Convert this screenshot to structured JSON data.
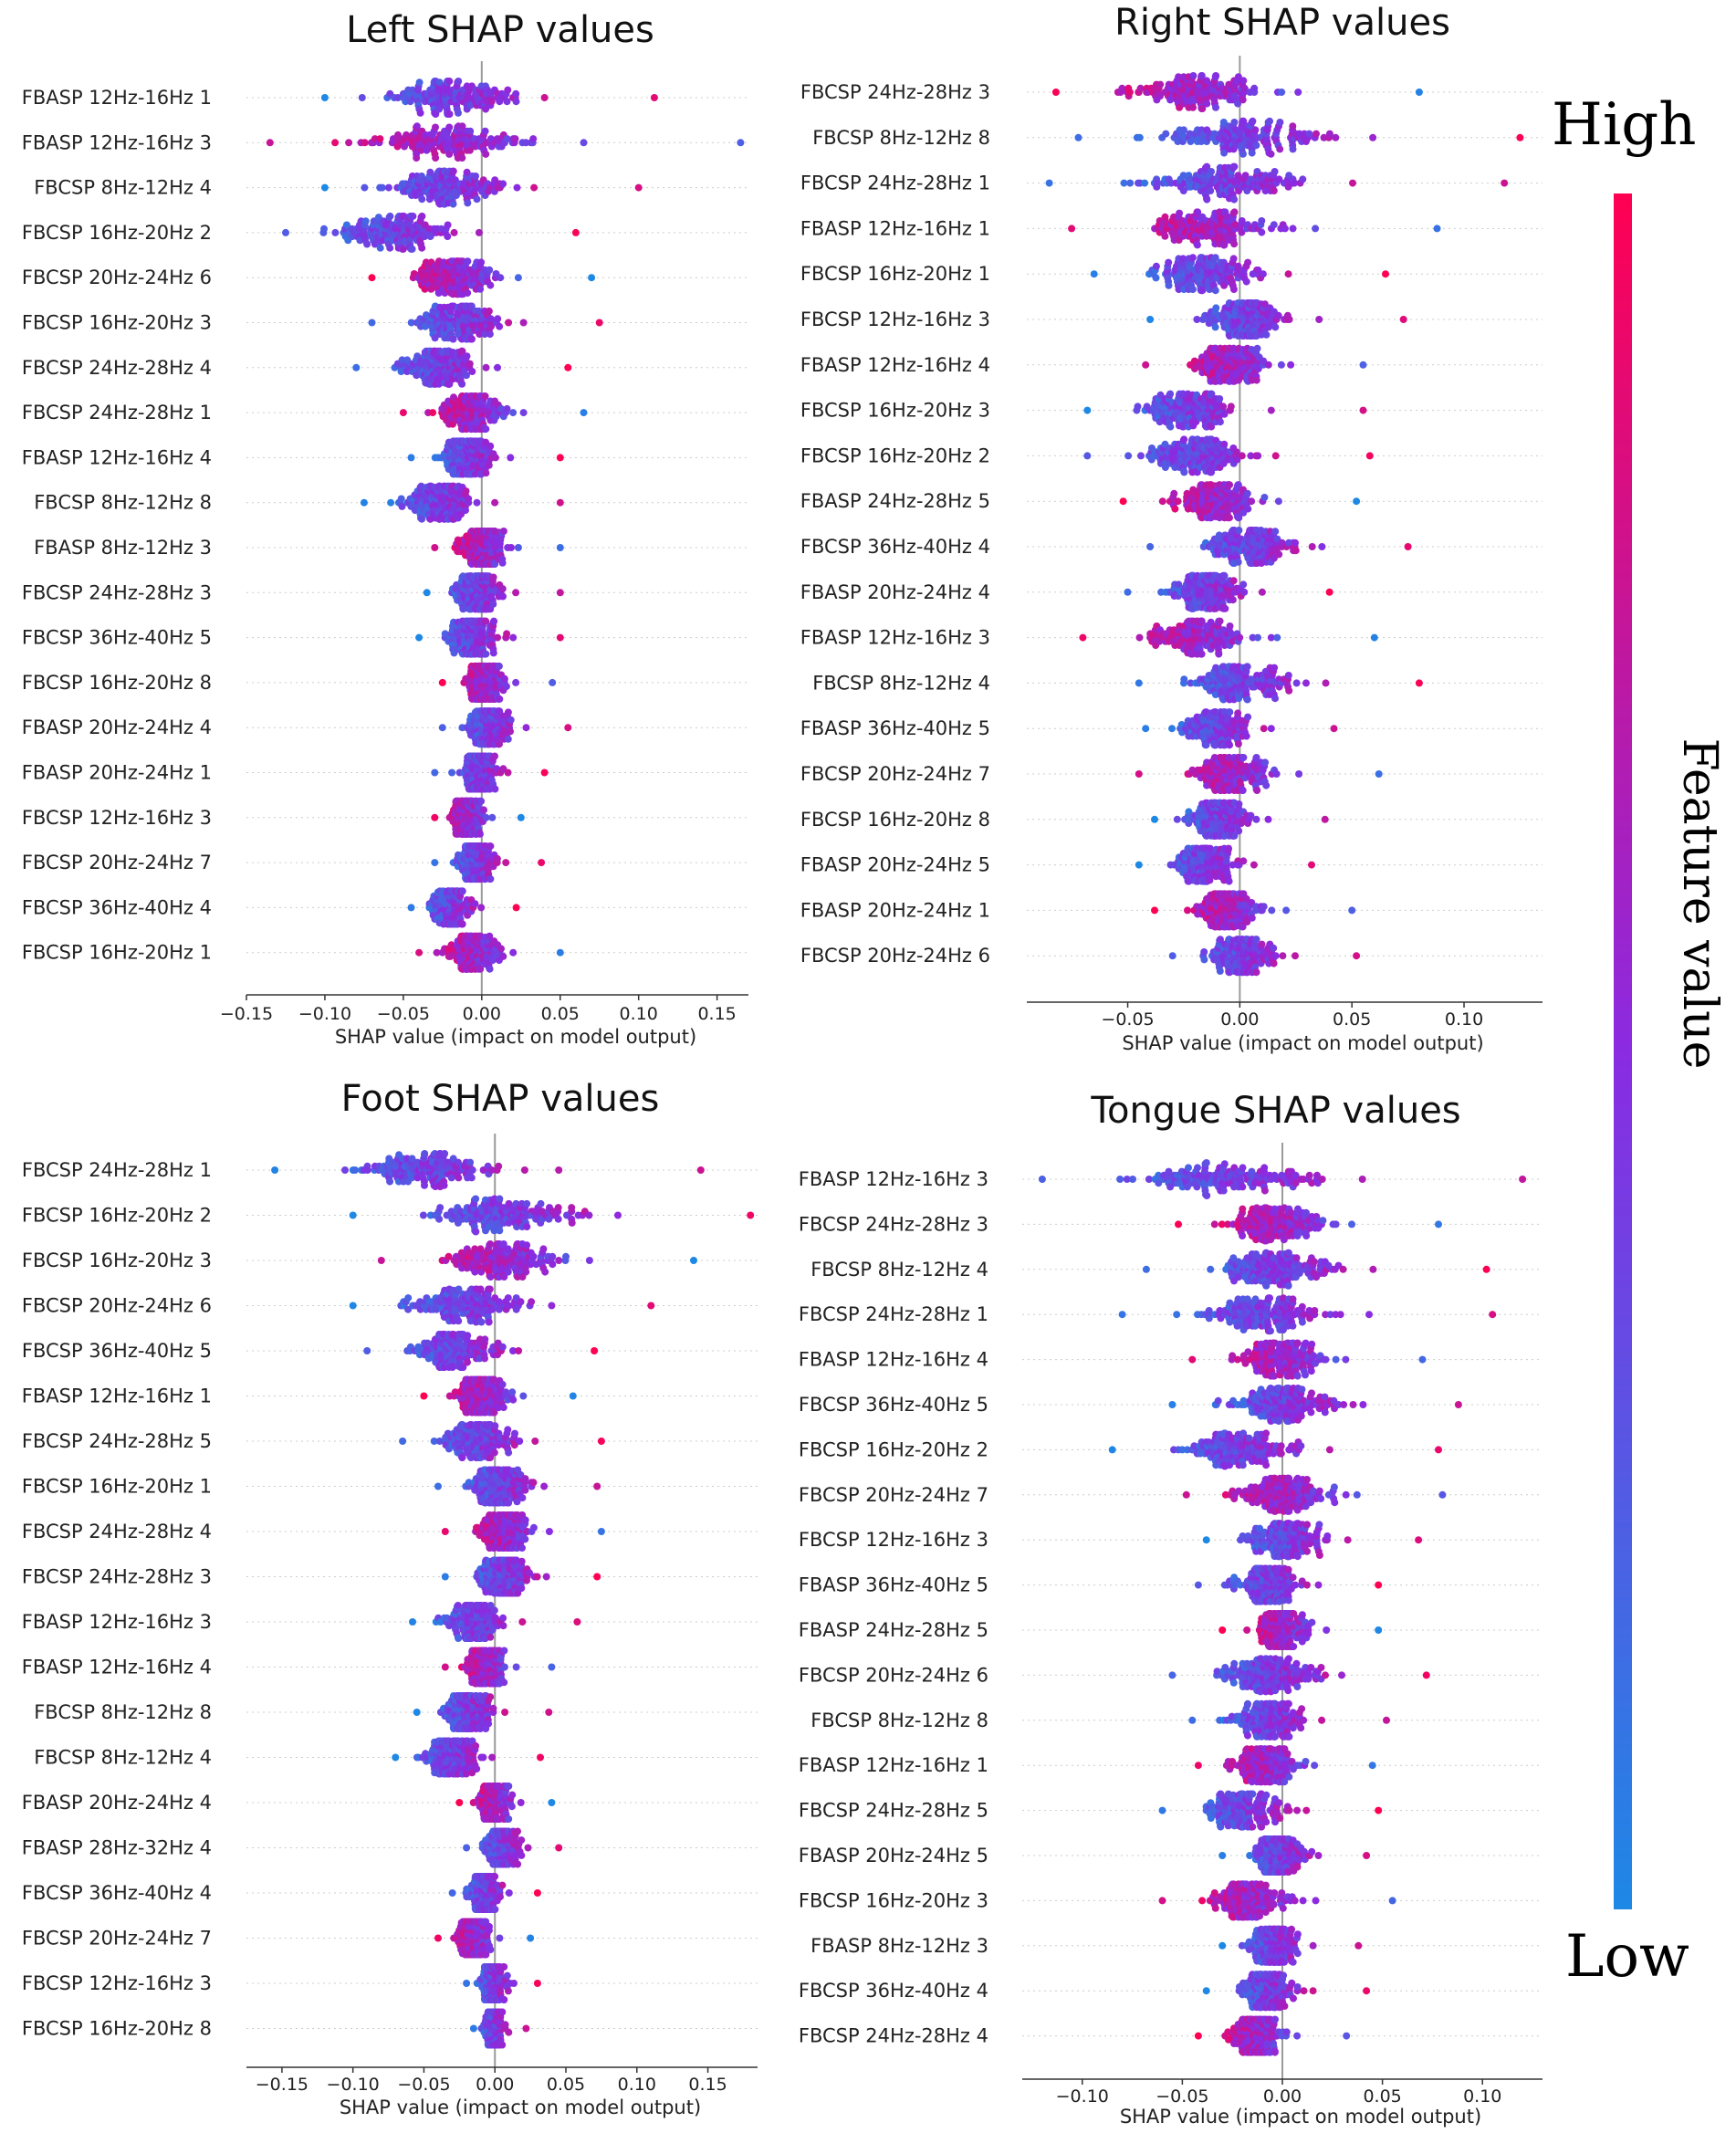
{
  "colorbar": {
    "high_label": "High",
    "low_label": "Low",
    "axis_label": "Feature value",
    "high_color": "#ff0052",
    "low_color": "#1e88e5"
  },
  "chart_data": [
    {
      "type": "scatter",
      "subtype": "shap-beeswarm",
      "title": "Left SHAP values",
      "xlabel": "SHAP value (impact on model output)",
      "xlim": [
        -0.15,
        0.17
      ],
      "xticks": [
        -0.15,
        -0.1,
        -0.05,
        0.0,
        0.05,
        0.1,
        0.15
      ],
      "tick_labels": [
        "−0.15",
        "−0.10",
        "−0.05",
        "0.00",
        "0.05",
        "0.10",
        "0.15"
      ],
      "features": [
        {
          "name": "FBASP 12Hz-16Hz 1",
          "min": -0.1,
          "max": 0.11
        },
        {
          "name": "FBASP 12Hz-16Hz 3",
          "min": -0.135,
          "max": 0.165
        },
        {
          "name": "FBCSP 8Hz-12Hz 4",
          "min": -0.1,
          "max": 0.1
        },
        {
          "name": "FBCSP 16Hz-20Hz 2",
          "min": -0.125,
          "max": 0.06
        },
        {
          "name": "FBCSP 20Hz-24Hz 6",
          "min": -0.07,
          "max": 0.07
        },
        {
          "name": "FBCSP 16Hz-20Hz 3",
          "min": -0.07,
          "max": 0.075
        },
        {
          "name": "FBCSP 24Hz-28Hz 4",
          "min": -0.08,
          "max": 0.055
        },
        {
          "name": "FBCSP 24Hz-28Hz 1",
          "min": -0.05,
          "max": 0.065
        },
        {
          "name": "FBASP 12Hz-16Hz 4",
          "min": -0.045,
          "max": 0.05
        },
        {
          "name": "FBCSP 8Hz-12Hz 8",
          "min": -0.075,
          "max": 0.05
        },
        {
          "name": "FBASP 8Hz-12Hz 3",
          "min": -0.03,
          "max": 0.05
        },
        {
          "name": "FBCSP 24Hz-28Hz 3",
          "min": -0.035,
          "max": 0.05
        },
        {
          "name": "FBCSP 36Hz-40Hz 5",
          "min": -0.04,
          "max": 0.05
        },
        {
          "name": "FBCSP 16Hz-20Hz 8",
          "min": -0.025,
          "max": 0.045
        },
        {
          "name": "FBASP 20Hz-24Hz 4",
          "min": -0.025,
          "max": 0.055
        },
        {
          "name": "FBASP 20Hz-24Hz 1",
          "min": -0.03,
          "max": 0.04
        },
        {
          "name": "FBCSP 12Hz-16Hz 3",
          "min": -0.03,
          "max": 0.025
        },
        {
          "name": "FBCSP 20Hz-24Hz 7",
          "min": -0.03,
          "max": 0.038
        },
        {
          "name": "FBCSP 36Hz-40Hz 4",
          "min": -0.045,
          "max": 0.022
        },
        {
          "name": "FBCSP 16Hz-20Hz 1",
          "min": -0.04,
          "max": 0.05
        }
      ]
    },
    {
      "type": "scatter",
      "subtype": "shap-beeswarm",
      "title": "Right SHAP values",
      "xlabel": "SHAP value (impact on model output)",
      "xlim": [
        -0.095,
        0.135
      ],
      "xticks": [
        -0.05,
        0.0,
        0.05,
        0.1
      ],
      "tick_labels": [
        "−0.05",
        "0.00",
        "0.05",
        "0.10"
      ],
      "features": [
        {
          "name": "FBCSP 24Hz-28Hz 3",
          "min": -0.082,
          "max": 0.08
        },
        {
          "name": "FBCSP 8Hz-12Hz 8",
          "min": -0.072,
          "max": 0.125
        },
        {
          "name": "FBCSP 24Hz-28Hz 1",
          "min": -0.085,
          "max": 0.118
        },
        {
          "name": "FBASP 12Hz-16Hz 1",
          "min": -0.075,
          "max": 0.088
        },
        {
          "name": "FBCSP 16Hz-20Hz 1",
          "min": -0.065,
          "max": 0.065
        },
        {
          "name": "FBCSP 12Hz-16Hz 3",
          "min": -0.04,
          "max": 0.073
        },
        {
          "name": "FBASP 12Hz-16Hz 4",
          "min": -0.042,
          "max": 0.055
        },
        {
          "name": "FBCSP 16Hz-20Hz 3",
          "min": -0.068,
          "max": 0.055
        },
        {
          "name": "FBCSP 16Hz-20Hz 2",
          "min": -0.068,
          "max": 0.058
        },
        {
          "name": "FBASP 24Hz-28Hz 5",
          "min": -0.052,
          "max": 0.052
        },
        {
          "name": "FBCSP 36Hz-40Hz 4",
          "min": -0.04,
          "max": 0.075
        },
        {
          "name": "FBASP 20Hz-24Hz 4",
          "min": -0.05,
          "max": 0.04
        },
        {
          "name": "FBASP 12Hz-16Hz 3",
          "min": -0.07,
          "max": 0.06
        },
        {
          "name": "FBCSP 8Hz-12Hz 4",
          "min": -0.045,
          "max": 0.08
        },
        {
          "name": "FBASP 36Hz-40Hz 5",
          "min": -0.042,
          "max": 0.042
        },
        {
          "name": "FBCSP 20Hz-24Hz 7",
          "min": -0.045,
          "max": 0.062
        },
        {
          "name": "FBCSP 16Hz-20Hz 8",
          "min": -0.038,
          "max": 0.038
        },
        {
          "name": "FBASP 20Hz-24Hz 5",
          "min": -0.045,
          "max": 0.032
        },
        {
          "name": "FBASP 20Hz-24Hz 1",
          "min": -0.038,
          "max": 0.05
        },
        {
          "name": "FBCSP 20Hz-24Hz 6",
          "min": -0.03,
          "max": 0.052
        }
      ]
    },
    {
      "type": "scatter",
      "subtype": "shap-beeswarm",
      "title": "Foot SHAP values",
      "xlabel": "SHAP value (impact on model output)",
      "xlim": [
        -0.175,
        0.185
      ],
      "xticks": [
        -0.15,
        -0.1,
        -0.05,
        0.0,
        0.05,
        0.1,
        0.15
      ],
      "tick_labels": [
        "−0.15",
        "−0.10",
        "−0.05",
        "0.00",
        "0.05",
        "0.10",
        "0.15"
      ],
      "features": [
        {
          "name": "FBCSP 24Hz-28Hz 1",
          "min": -0.155,
          "max": 0.145
        },
        {
          "name": "FBCSP 16Hz-20Hz 2",
          "min": -0.1,
          "max": 0.18
        },
        {
          "name": "FBCSP 16Hz-20Hz 3",
          "min": -0.08,
          "max": 0.14
        },
        {
          "name": "FBCSP 20Hz-24Hz 6",
          "min": -0.1,
          "max": 0.11
        },
        {
          "name": "FBCSP 36Hz-40Hz 5",
          "min": -0.09,
          "max": 0.07
        },
        {
          "name": "FBASP 12Hz-16Hz 1",
          "min": -0.05,
          "max": 0.055
        },
        {
          "name": "FBCSP 24Hz-28Hz 5",
          "min": -0.065,
          "max": 0.075
        },
        {
          "name": "FBCSP 16Hz-20Hz 1",
          "min": -0.04,
          "max": 0.072
        },
        {
          "name": "FBCSP 24Hz-28Hz 4",
          "min": -0.035,
          "max": 0.075
        },
        {
          "name": "FBCSP 24Hz-28Hz 3",
          "min": -0.035,
          "max": 0.072
        },
        {
          "name": "FBASP 12Hz-16Hz 3",
          "min": -0.058,
          "max": 0.058
        },
        {
          "name": "FBASP 12Hz-16Hz 4",
          "min": -0.035,
          "max": 0.04
        },
        {
          "name": "FBCSP 8Hz-12Hz 8",
          "min": -0.055,
          "max": 0.038
        },
        {
          "name": "FBCSP 8Hz-12Hz 4",
          "min": -0.07,
          "max": 0.032
        },
        {
          "name": "FBASP 20Hz-24Hz 4",
          "min": -0.025,
          "max": 0.04
        },
        {
          "name": "FBASP 28Hz-32Hz 4",
          "min": -0.02,
          "max": 0.045
        },
        {
          "name": "FBCSP 36Hz-40Hz 4",
          "min": -0.03,
          "max": 0.03
        },
        {
          "name": "FBCSP 20Hz-24Hz 7",
          "min": -0.04,
          "max": 0.025
        },
        {
          "name": "FBCSP 12Hz-16Hz 3",
          "min": -0.02,
          "max": 0.03
        },
        {
          "name": "FBCSP 16Hz-20Hz 8",
          "min": -0.015,
          "max": 0.022
        }
      ]
    },
    {
      "type": "scatter",
      "subtype": "shap-beeswarm",
      "title": "Tongue SHAP values",
      "xlabel": "SHAP value (impact on model output)",
      "xlim": [
        -0.13,
        0.13
      ],
      "xticks": [
        -0.1,
        -0.05,
        0.0,
        0.05,
        0.1
      ],
      "tick_labels": [
        "−0.10",
        "−0.05",
        "0.00",
        "0.05",
        "0.10"
      ],
      "features": [
        {
          "name": "FBASP 12Hz-16Hz 3",
          "min": -0.12,
          "max": 0.12
        },
        {
          "name": "FBCSP 24Hz-28Hz 3",
          "min": -0.052,
          "max": 0.078
        },
        {
          "name": "FBCSP 8Hz-12Hz 4",
          "min": -0.068,
          "max": 0.102
        },
        {
          "name": "FBCSP 24Hz-28Hz 1",
          "min": -0.08,
          "max": 0.105
        },
        {
          "name": "FBASP 12Hz-16Hz 4",
          "min": -0.045,
          "max": 0.07
        },
        {
          "name": "FBCSP 36Hz-40Hz 5",
          "min": -0.055,
          "max": 0.088
        },
        {
          "name": "FBCSP 16Hz-20Hz 2",
          "min": -0.085,
          "max": 0.078
        },
        {
          "name": "FBCSP 20Hz-24Hz 7",
          "min": -0.048,
          "max": 0.08
        },
        {
          "name": "FBCSP 12Hz-16Hz 3",
          "min": -0.038,
          "max": 0.068
        },
        {
          "name": "FBASP 36Hz-40Hz 5",
          "min": -0.042,
          "max": 0.048
        },
        {
          "name": "FBASP 24Hz-28Hz 5",
          "min": -0.03,
          "max": 0.048
        },
        {
          "name": "FBCSP 20Hz-24Hz 6",
          "min": -0.055,
          "max": 0.072
        },
        {
          "name": "FBCSP 8Hz-12Hz 8",
          "min": -0.045,
          "max": 0.052
        },
        {
          "name": "FBASP 12Hz-16Hz 1",
          "min": -0.042,
          "max": 0.045
        },
        {
          "name": "FBCSP 24Hz-28Hz 5",
          "min": -0.06,
          "max": 0.048
        },
        {
          "name": "FBASP 20Hz-24Hz 5",
          "min": -0.03,
          "max": 0.042
        },
        {
          "name": "FBCSP 16Hz-20Hz 3",
          "min": -0.06,
          "max": 0.055
        },
        {
          "name": "FBASP 8Hz-12Hz 3",
          "min": -0.03,
          "max": 0.038
        },
        {
          "name": "FBCSP 36Hz-40Hz 4",
          "min": -0.038,
          "max": 0.042
        },
        {
          "name": "FBCSP 24Hz-28Hz 4",
          "min": -0.042,
          "max": 0.032
        }
      ]
    }
  ]
}
